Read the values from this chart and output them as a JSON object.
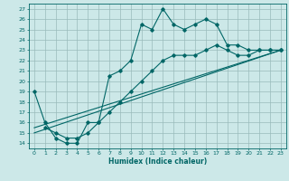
{
  "xlabel": "Humidex (Indice chaleur)",
  "bg_color": "#cce8e8",
  "grid_color": "#99bbbb",
  "line_color": "#006666",
  "xlim": [
    -0.5,
    23.5
  ],
  "ylim": [
    13.5,
    27.5
  ],
  "xticks": [
    0,
    1,
    2,
    3,
    4,
    5,
    6,
    7,
    8,
    9,
    10,
    11,
    12,
    13,
    14,
    15,
    16,
    17,
    18,
    19,
    20,
    21,
    22,
    23
  ],
  "yticks": [
    14,
    15,
    16,
    17,
    18,
    19,
    20,
    21,
    22,
    23,
    24,
    25,
    26,
    27
  ],
  "series1_x": [
    0,
    1,
    2,
    3,
    4,
    5,
    6,
    7,
    8,
    9,
    10,
    11,
    12,
    13,
    14,
    15,
    16,
    17,
    18,
    19,
    20,
    21,
    22,
    23
  ],
  "series1_y": [
    19,
    16,
    14.5,
    14,
    14,
    16,
    16,
    20.5,
    21,
    22,
    25.5,
    25.0,
    27,
    25.5,
    25.0,
    25.5,
    26,
    25.5,
    23.5,
    23.5,
    23.0,
    23.0,
    23.0,
    23.0
  ],
  "series2_x": [
    1,
    2,
    3,
    4,
    5,
    6,
    7,
    8,
    9,
    10,
    11,
    12,
    13,
    14,
    15,
    16,
    17,
    18,
    19,
    20,
    21,
    22,
    23
  ],
  "series2_y": [
    15.5,
    15.0,
    14.5,
    14.5,
    15.0,
    16.0,
    17.0,
    18.0,
    19.0,
    20.0,
    21.0,
    22.0,
    22.5,
    22.5,
    22.5,
    23.0,
    23.5,
    23.0,
    22.5,
    22.5,
    23.0,
    23.0,
    23.0
  ],
  "series3_x": [
    0,
    23
  ],
  "series3_y": [
    15.5,
    23.0
  ],
  "series4_x": [
    0,
    23
  ],
  "series4_y": [
    15.0,
    23.0
  ]
}
